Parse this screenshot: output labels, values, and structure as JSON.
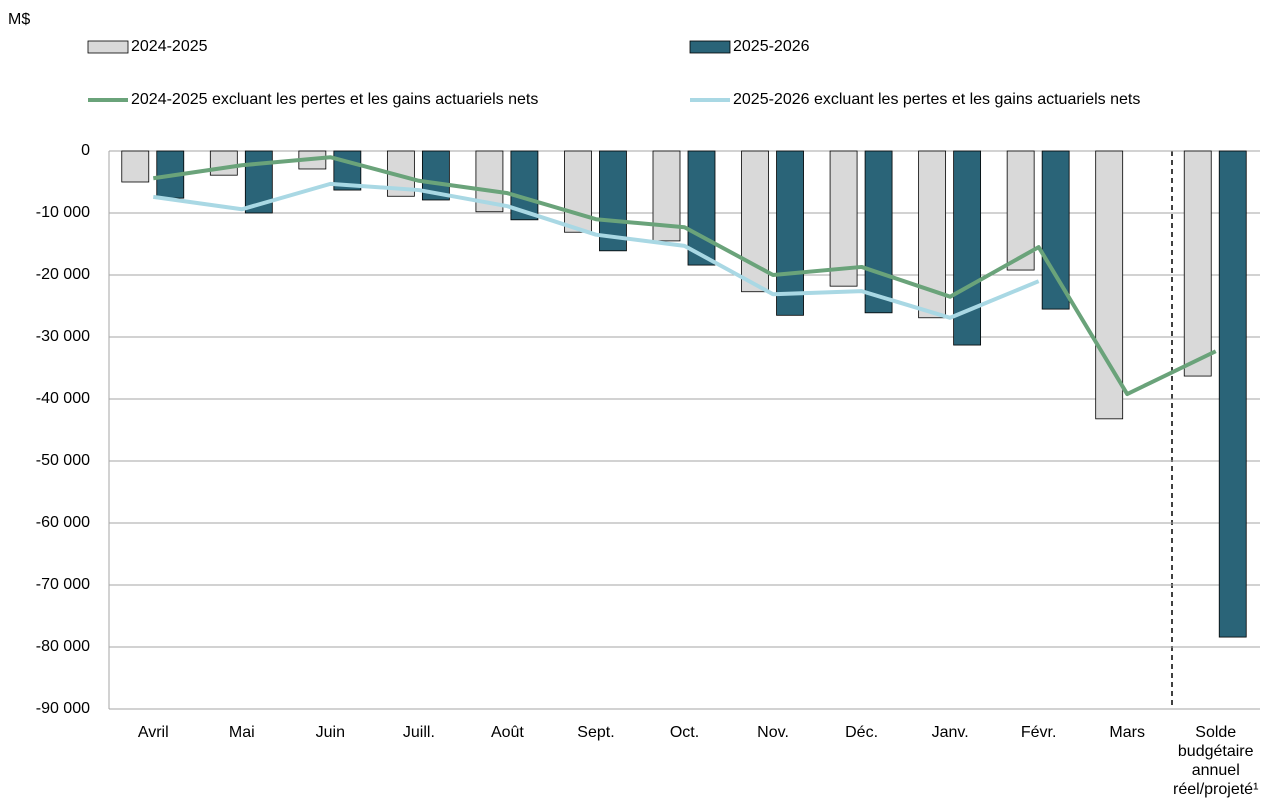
{
  "chart_data": {
    "type": "bar",
    "y_label": "M$",
    "categories": [
      "Avril",
      "Mai",
      "Juin",
      "Juill.",
      "Août",
      "Sept.",
      "Oct.",
      "Nov.",
      "Déc.",
      "Janv.",
      "Févr.",
      "Mars",
      "Solde\nbudgétaire\nannuel\nréel/projeté¹"
    ],
    "series": [
      {
        "name": "2024-2025",
        "type": "bar",
        "color": "#d9d9d9",
        "values": [
          -5000,
          -3900,
          -2900,
          -7300,
          -9800,
          -13100,
          -14500,
          -22700,
          -21800,
          -26900,
          -19200,
          -43200,
          -36300
        ]
      },
      {
        "name": "2025-2026",
        "type": "bar",
        "color": "#2a6478",
        "values": [
          -7600,
          -10000,
          -6300,
          -7900,
          -11100,
          -16100,
          -18400,
          -26500,
          -26100,
          -31300,
          -25500,
          null,
          -78400
        ]
      },
      {
        "name": "2024-2025 excluant les pertes et les gains actuariels nets",
        "type": "line",
        "color": "#6aa37a",
        "values": [
          -4400,
          -2300,
          -1000,
          -4800,
          -6800,
          -11000,
          -12300,
          -20000,
          -18700,
          -23500,
          -15500,
          -39200,
          -32300
        ]
      },
      {
        "name": "2025-2026 excluant les pertes et les gains actuariels nets",
        "type": "line",
        "color": "#a9d8e4",
        "values": [
          -7400,
          -9400,
          -5300,
          -6300,
          -8900,
          -13500,
          -15300,
          -23100,
          -22600,
          -26900,
          -21000,
          null,
          null
        ]
      }
    ],
    "ylim": [
      -90000,
      0
    ],
    "yticks": [
      0,
      {
        "value": -10000,
        "label": "-10 000"
      },
      {
        "value": -20000,
        "label": "-20 000"
      },
      {
        "value": -30000,
        "label": "-30 000"
      },
      {
        "value": -40000,
        "label": "-40 000"
      },
      {
        "value": -50000,
        "label": "-50 000"
      },
      {
        "value": -60000,
        "label": "-60 000"
      },
      {
        "value": -70000,
        "label": "-70 000"
      },
      {
        "value": -80000,
        "label": "-80 000"
      },
      {
        "value": -90000,
        "label": "-90 000"
      }
    ],
    "grid": true
  }
}
